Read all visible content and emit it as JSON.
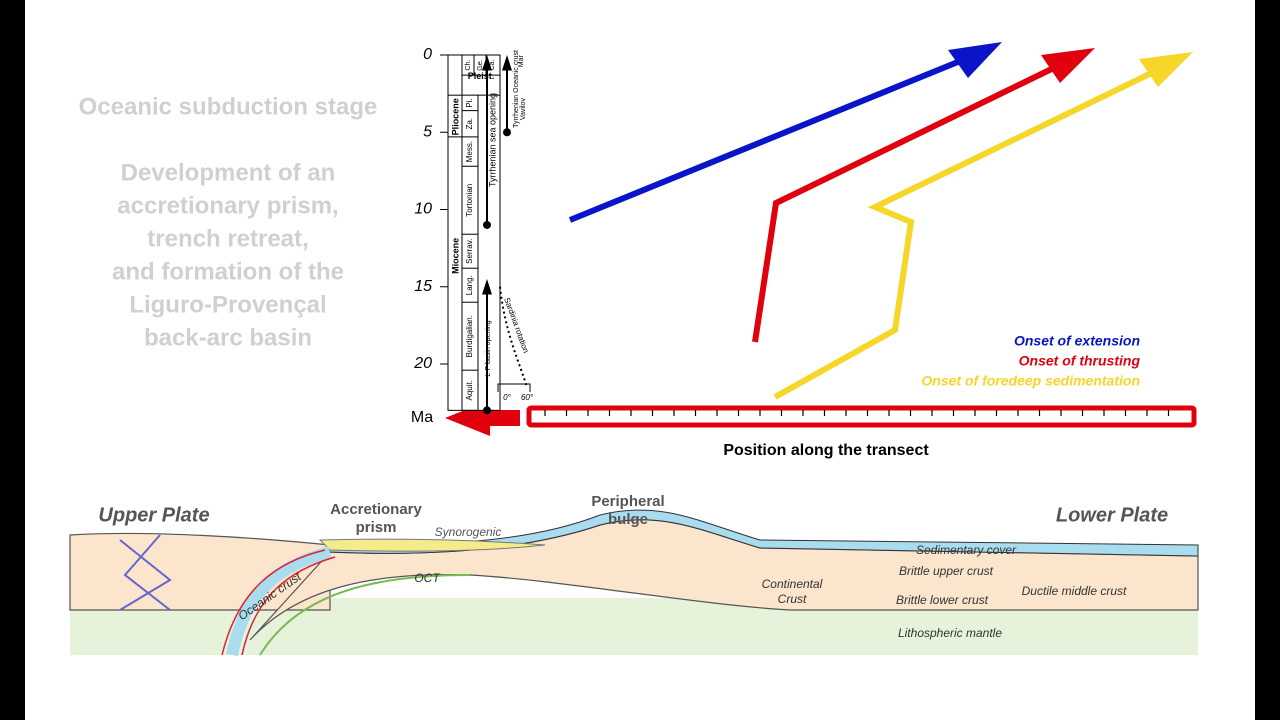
{
  "slide": {
    "stage_title": "Oceanic subduction stage",
    "description_lines": [
      "Development of an",
      "accretionary prism,",
      "trench retreat,",
      "and formation of the",
      "Liguro-Provençal",
      "back-arc basin"
    ]
  },
  "timescale": {
    "ticks": [
      0,
      5,
      10,
      15,
      20
    ],
    "unit": "Ma",
    "epochs": [
      "Pleist.",
      "Pliocene",
      "Miocene"
    ],
    "top_stages": [
      "Ch.",
      "Ge.",
      "Ca."
    ],
    "stages": [
      "Pi.",
      "Za.",
      "Mess.",
      "Tortonian",
      "Serrav.",
      "Lang.",
      "Burdigalian.",
      "Aquit."
    ],
    "events": [
      "Tyrrhenian sea opening",
      "Tyrrhenian Oceanic crust",
      "Vavilov",
      "Mar",
      "L-P basin opening",
      "Sardinia rotation"
    ],
    "rotation_scale": [
      "0°",
      "60°"
    ]
  },
  "legend": [
    "Onset of extension",
    "Onset of thrusting",
    "Onset of foredeep sedimentation"
  ],
  "transect_label": "Position along the transect",
  "cross_section": {
    "labels": [
      "Upper Plate",
      "Accretionary prism",
      "Synorogenic",
      "Peripheral bulge",
      "Lower Plate",
      "Sedimentary cover",
      "Continental Crust",
      "Brittle upper crust",
      "Ductile middle crust",
      "Brittle lower crust",
      "Lithospheric mantle",
      "OCT",
      "Oceanic crust"
    ]
  }
}
